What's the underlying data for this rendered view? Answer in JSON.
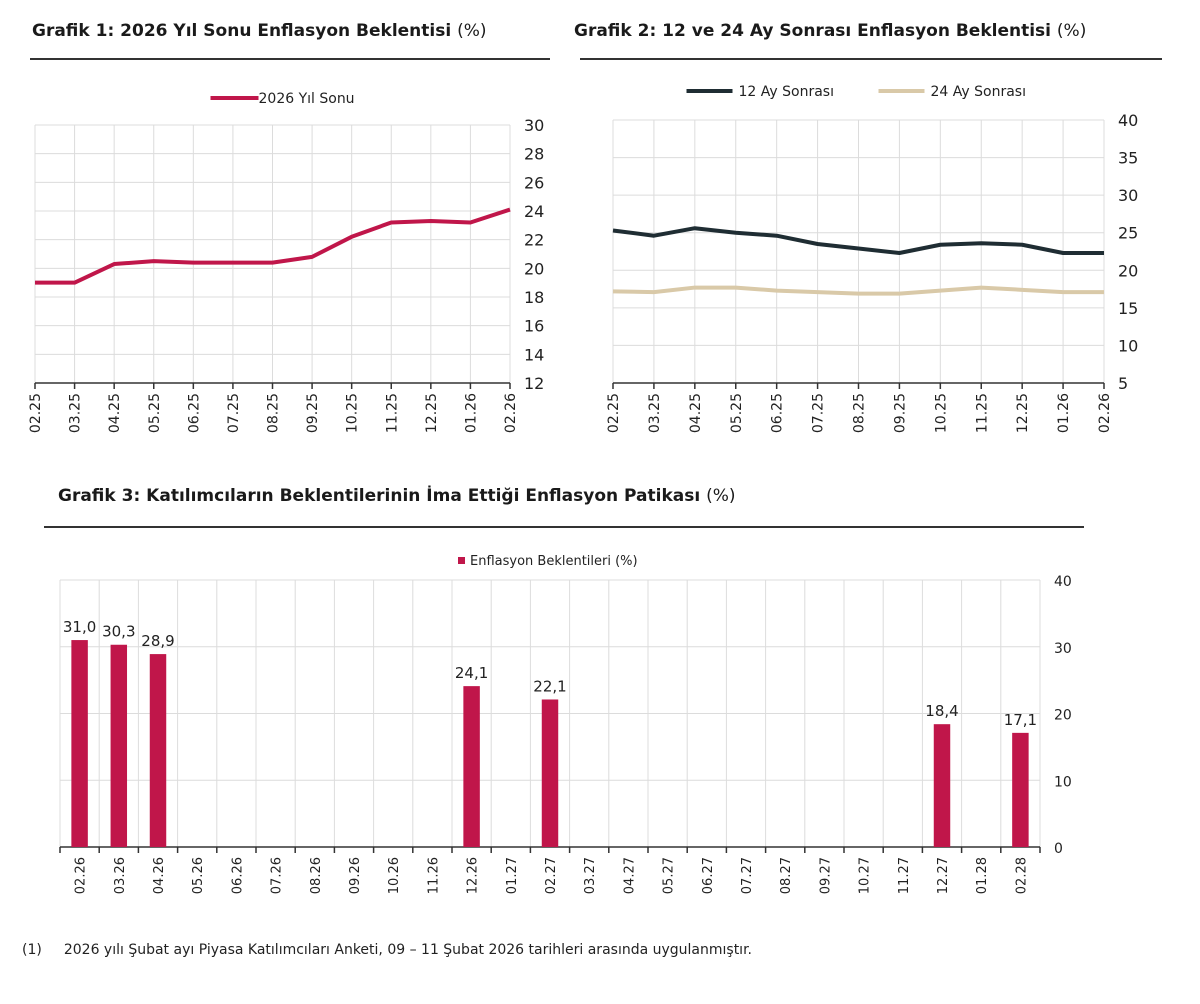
{
  "chart_data": [
    {
      "type": "line",
      "title": "Grafik 1: 2026 Yıl Sonu Enflasyon Beklentisi",
      "title_unit": "(%)",
      "categories": [
        "02.25",
        "03.25",
        "04.25",
        "05.25",
        "06.25",
        "07.25",
        "08.25",
        "09.25",
        "10.25",
        "11.25",
        "12.25",
        "01.26",
        "02.26"
      ],
      "series": [
        {
          "name": "2026 Yıl Sonu",
          "color": "#c0164a",
          "values": [
            19.0,
            19.0,
            20.3,
            20.5,
            20.4,
            20.4,
            20.4,
            20.8,
            22.2,
            23.2,
            23.3,
            23.2,
            24.1
          ]
        }
      ],
      "ylim": [
        12,
        30
      ],
      "yticks": [
        12,
        14,
        16,
        18,
        20,
        22,
        24,
        26,
        28,
        30
      ],
      "yaxis_side": "right",
      "grid": true,
      "legend": "top-center"
    },
    {
      "type": "line",
      "title": "Grafik 2: 12 ve 24 Ay Sonrası Enflasyon Beklentisi",
      "title_unit": "(%)",
      "categories": [
        "02.25",
        "03.25",
        "04.25",
        "05.25",
        "06.25",
        "07.25",
        "08.25",
        "09.25",
        "10.25",
        "11.25",
        "12.25",
        "01.26",
        "02.26"
      ],
      "series": [
        {
          "name": "12 Ay Sonrası",
          "color": "#1f2d33",
          "values": [
            25.3,
            24.6,
            25.6,
            25.0,
            24.6,
            23.5,
            22.9,
            22.3,
            23.4,
            23.6,
            23.4,
            22.3,
            22.3
          ]
        },
        {
          "name": "24 Ay Sonrası",
          "color": "#d9c9a8",
          "values": [
            17.2,
            17.1,
            17.7,
            17.7,
            17.3,
            17.1,
            16.9,
            16.9,
            17.3,
            17.7,
            17.4,
            17.1,
            17.1
          ]
        }
      ],
      "ylim": [
        5,
        40
      ],
      "yticks": [
        5,
        10,
        15,
        20,
        25,
        30,
        35,
        40
      ],
      "yaxis_side": "right",
      "grid": true,
      "legend": "top-center"
    },
    {
      "type": "bar",
      "title": "Grafik 3: Katılımcıların Beklentilerinin İma Ettiği Enflasyon Patikası",
      "title_unit": "(%)",
      "categories": [
        "02.26",
        "03.26",
        "04.26",
        "05.26",
        "06.26",
        "07.26",
        "08.26",
        "09.26",
        "10.26",
        "11.26",
        "12.26",
        "01.27",
        "02.27",
        "03.27",
        "04.27",
        "05.27",
        "06.27",
        "07.27",
        "08.27",
        "09.27",
        "10.27",
        "11.27",
        "12.27",
        "01.28",
        "02.28"
      ],
      "series": [
        {
          "name": "Enflasyon Beklentileri (%)",
          "color": "#c0164a",
          "values": [
            31.0,
            30.3,
            28.9,
            null,
            null,
            null,
            null,
            null,
            null,
            null,
            24.1,
            null,
            22.1,
            null,
            null,
            null,
            null,
            null,
            null,
            null,
            null,
            null,
            18.4,
            null,
            17.1
          ]
        }
      ],
      "data_labels": [
        "31,0",
        "30,3",
        "28,9",
        "",
        "",
        "",
        "",
        "",
        "",
        "",
        "24,1",
        "",
        "22,1",
        "",
        "",
        "",
        "",
        "",
        "",
        "",
        "",
        "",
        "18,4",
        "",
        "17,1"
      ],
      "ylim": [
        0,
        40
      ],
      "yticks": [
        0,
        10,
        20,
        30,
        40
      ],
      "yaxis_side": "right",
      "grid": true,
      "legend": "top-center"
    }
  ],
  "footnote": {
    "marker": "(1)",
    "text": "2026 yılı Şubat ayı Piyasa Katılımcıları Anketi, 09 – 11 Şubat 2026 tarihleri arasında uygulanmıştır."
  }
}
